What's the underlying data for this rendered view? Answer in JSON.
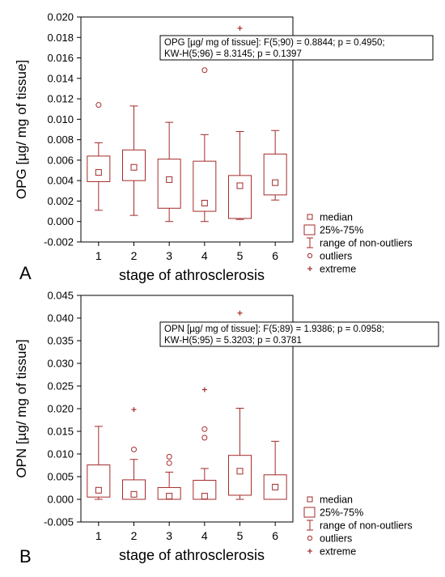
{
  "colors": {
    "box": "#a52a2a",
    "axis": "#000000",
    "text": "#000000"
  },
  "chart_data": [
    {
      "panel_label": "A",
      "type": "boxplot",
      "xlabel": "stage of athrosclerosis",
      "ylabel": "OPG [µg/ mg of tissue]",
      "ylim": [
        -0.002,
        0.02
      ],
      "y_ticks": [
        "-0.002",
        "0.000",
        "0.002",
        "0.004",
        "0.006",
        "0.008",
        "0.010",
        "0.012",
        "0.014",
        "0.016",
        "0.018",
        "0.020"
      ],
      "categories": [
        "1",
        "2",
        "3",
        "4",
        "5",
        "6"
      ],
      "annotation": [
        "OPG [µg/ mg of tissue]:  F(5;90) = 0.8844; p = 0.4950;",
        "KW-H(5;96) = 8.3145; p = 0.1397"
      ],
      "boxes": [
        {
          "category": "1",
          "median": 0.0048,
          "q1": 0.0039,
          "q3": 0.0064,
          "whisker_low": 0.0011,
          "whisker_high": 0.0077,
          "outliers": [
            0.0114
          ],
          "extremes": []
        },
        {
          "category": "2",
          "median": 0.0053,
          "q1": 0.004,
          "q3": 0.007,
          "whisker_low": 0.0006,
          "whisker_high": 0.0113,
          "outliers": [],
          "extremes": []
        },
        {
          "category": "3",
          "median": 0.0041,
          "q1": 0.0013,
          "q3": 0.0061,
          "whisker_low": 0.0,
          "whisker_high": 0.0097,
          "outliers": [],
          "extremes": []
        },
        {
          "category": "4",
          "median": 0.0018,
          "q1": 0.001,
          "q3": 0.0059,
          "whisker_low": 0.0,
          "whisker_high": 0.0085,
          "outliers": [
            0.0148
          ],
          "extremes": []
        },
        {
          "category": "5",
          "median": 0.0035,
          "q1": 0.0003,
          "q3": 0.0045,
          "whisker_low": 0.0002,
          "whisker_high": 0.0088,
          "outliers": [],
          "extremes": [
            0.0189
          ]
        },
        {
          "category": "6",
          "median": 0.0038,
          "q1": 0.0026,
          "q3": 0.0066,
          "whisker_low": 0.0021,
          "whisker_high": 0.0089,
          "outliers": [],
          "extremes": []
        }
      ],
      "legend": [
        "median",
        "25%-75%",
        "range of non-outliers",
        "outliers",
        "extreme"
      ]
    },
    {
      "panel_label": "B",
      "type": "boxplot",
      "xlabel": "stage of athrosclerosis",
      "ylabel": "OPN [µg/ mg of tissue]",
      "ylim": [
        -0.005,
        0.045
      ],
      "y_ticks": [
        "-0.005",
        "0.000",
        "0.005",
        "0.010",
        "0.015",
        "0.020",
        "0.025",
        "0.030",
        "0.035",
        "0.040",
        "0.045"
      ],
      "categories": [
        "1",
        "2",
        "3",
        "4",
        "5",
        "6"
      ],
      "annotation": [
        "OPN [µg/ mg of tissue]:  F(5;89) = 1.9386; p = 0.0958;",
        "KW-H(5;95) = 5.3203; p = 0.3781"
      ],
      "boxes": [
        {
          "category": "1",
          "median": 0.002,
          "q1": 0.0005,
          "q3": 0.0076,
          "whisker_low": 0.0,
          "whisker_high": 0.0161,
          "outliers": [],
          "extremes": []
        },
        {
          "category": "2",
          "median": 0.0011,
          "q1": 0.0,
          "q3": 0.0043,
          "whisker_low": 0.0,
          "whisker_high": 0.0088,
          "outliers": [
            0.011
          ],
          "extremes": [
            0.0198
          ]
        },
        {
          "category": "3",
          "median": 0.0007,
          "q1": 0.0,
          "q3": 0.0026,
          "whisker_low": 0.0,
          "whisker_high": 0.006,
          "outliers": [
            0.008,
            0.0094
          ],
          "extremes": []
        },
        {
          "category": "4",
          "median": 0.0007,
          "q1": 0.0,
          "q3": 0.0042,
          "whisker_low": 0.0,
          "whisker_high": 0.0068,
          "outliers": [
            0.0136,
            0.0155
          ],
          "extremes": [
            0.0242
          ]
        },
        {
          "category": "5",
          "median": 0.0062,
          "q1": 0.0009,
          "q3": 0.0097,
          "whisker_low": 0.0,
          "whisker_high": 0.0201,
          "outliers": [],
          "extremes": [
            0.0411
          ]
        },
        {
          "category": "6",
          "median": 0.0027,
          "q1": 0.0,
          "q3": 0.0054,
          "whisker_low": 0.0,
          "whisker_high": 0.0128,
          "outliers": [],
          "extremes": []
        }
      ],
      "legend": [
        "median",
        "25%-75%",
        "range of non-outliers",
        "outliers",
        "extreme"
      ]
    }
  ]
}
